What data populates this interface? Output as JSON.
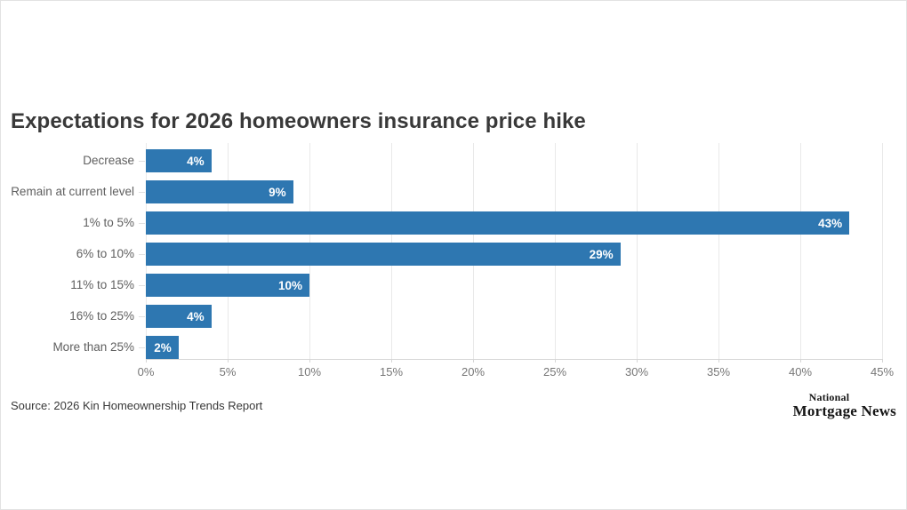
{
  "title": "Expectations for 2026 homeowners insurance price hike",
  "source": "Source: 2026 Kin Homeownership Trends Report",
  "logo": {
    "line1": "National",
    "line2": "Mortgage News"
  },
  "colors": {
    "bar": "#2e77b1",
    "gridline": "#e9e9e9",
    "axis": "#d6d6d6",
    "category_label": "#5f5f5f",
    "tick_label": "#767676",
    "title": "#393939",
    "value_label": "#ffffff"
  },
  "chart_data": {
    "type": "bar",
    "orientation": "horizontal",
    "title": "Expectations for 2026 homeowners insurance price hike",
    "xlabel": "",
    "ylabel": "",
    "categories": [
      "Decrease",
      "Remain at current level",
      "1% to 5%",
      "6% to 10%",
      "11% to 15%",
      "16% to 25%",
      "More than 25%"
    ],
    "values": [
      4,
      9,
      43,
      29,
      10,
      4,
      2
    ],
    "value_labels": [
      "4%",
      "9%",
      "43%",
      "29%",
      "10%",
      "4%",
      "2%"
    ],
    "x_tick_values": [
      0,
      5,
      10,
      15,
      20,
      25,
      30,
      35,
      40,
      45
    ],
    "x_tick_labels": [
      "0%",
      "5%",
      "10%",
      "15%",
      "20%",
      "25%",
      "30%",
      "35%",
      "40%",
      "45%"
    ],
    "xlim": [
      0,
      45
    ],
    "grid": "vertical-only",
    "legend": "none"
  }
}
